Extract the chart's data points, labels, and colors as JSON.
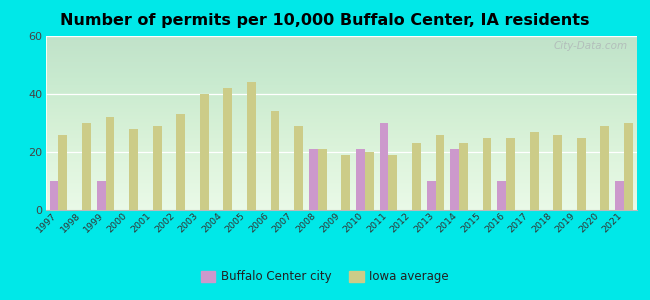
{
  "title": "Number of permits per 10,000 Buffalo Center, IA residents",
  "years": [
    1997,
    1998,
    1999,
    2000,
    2001,
    2002,
    2003,
    2004,
    2005,
    2006,
    2007,
    2008,
    2009,
    2010,
    2011,
    2012,
    2013,
    2014,
    2015,
    2016,
    2017,
    2018,
    2019,
    2020,
    2021
  ],
  "buffalo_center": [
    10,
    0,
    10,
    0,
    0,
    0,
    0,
    0,
    0,
    0,
    0,
    21,
    0,
    21,
    30,
    0,
    10,
    21,
    0,
    10,
    0,
    0,
    0,
    0,
    10
  ],
  "iowa_avg": [
    26,
    30,
    32,
    28,
    29,
    33,
    40,
    42,
    44,
    34,
    29,
    21,
    19,
    20,
    19,
    23,
    26,
    23,
    25,
    25,
    27,
    26,
    25,
    29,
    30
  ],
  "buffalo_color": "#cc99cc",
  "iowa_color": "#cccc88",
  "background_outer": "#00e8e8",
  "plot_bg_top": "#e0f2e0",
  "plot_bg_bottom": "#f5fff5",
  "ylim": [
    0,
    60
  ],
  "yticks": [
    0,
    20,
    40,
    60
  ],
  "watermark": "City-Data.com",
  "legend_buffalo": "Buffalo Center city",
  "legend_iowa": "Iowa average",
  "title_fontsize": 11.5,
  "bar_width": 0.75
}
